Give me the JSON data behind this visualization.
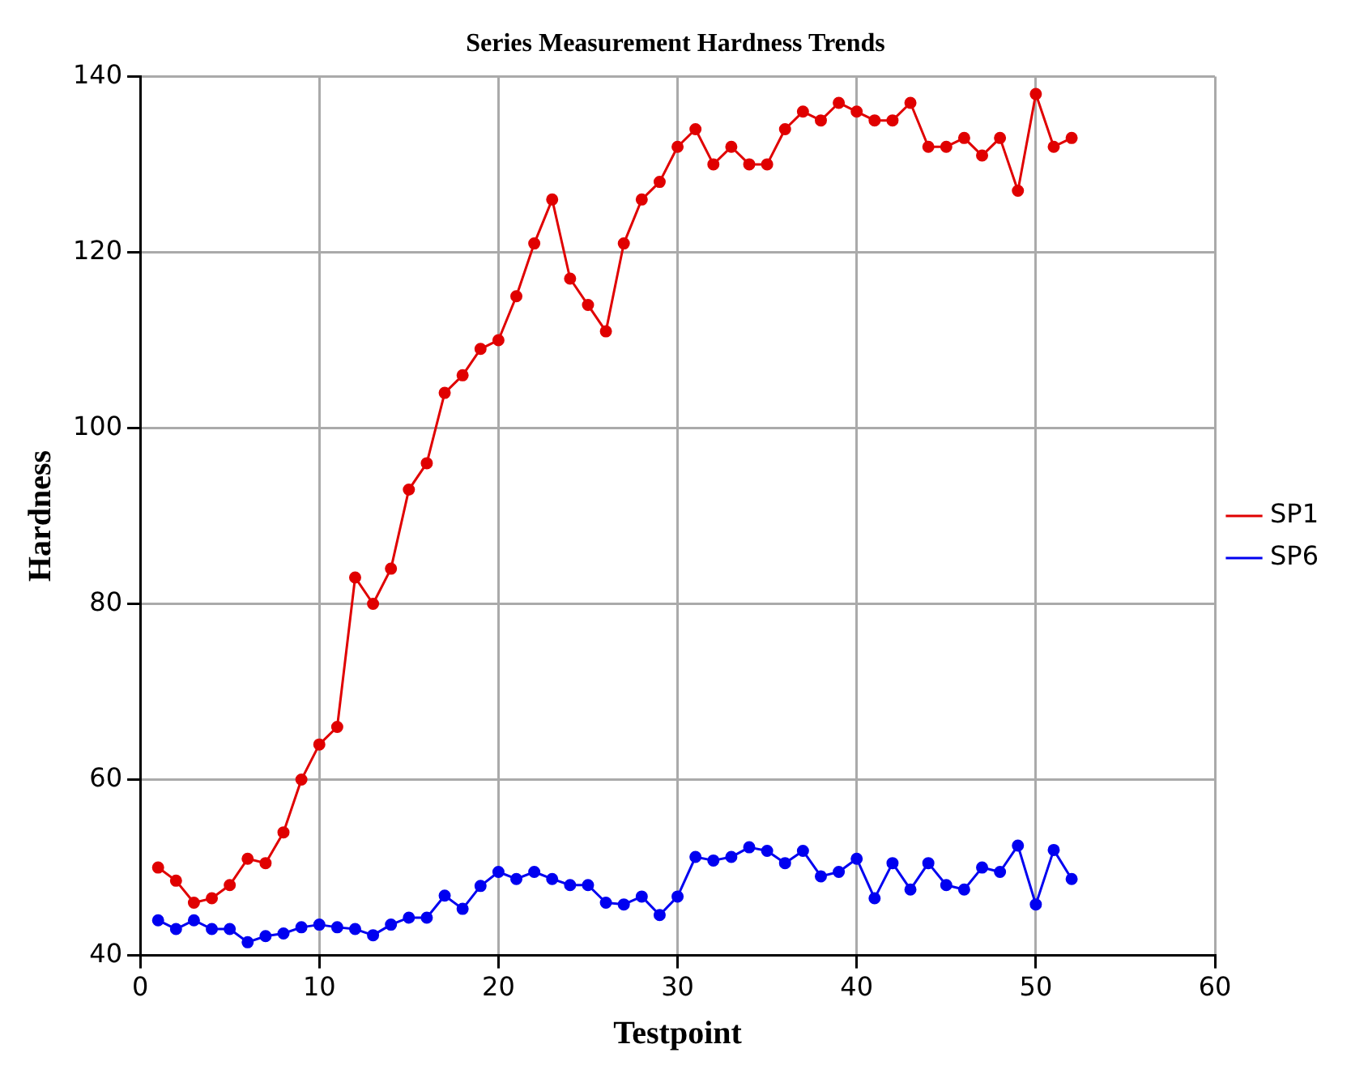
{
  "chart_data": {
    "type": "line",
    "title": "Series Measurement Hardness Trends",
    "xlabel": "Testpoint",
    "ylabel": "Hardness",
    "x": [
      1,
      2,
      3,
      4,
      5,
      6,
      7,
      8,
      9,
      10,
      11,
      12,
      13,
      14,
      15,
      16,
      17,
      18,
      19,
      20,
      21,
      22,
      23,
      24,
      25,
      26,
      27,
      28,
      29,
      30,
      31,
      32,
      33,
      34,
      35,
      36,
      37,
      38,
      39,
      40,
      41,
      42,
      43,
      44,
      45,
      46,
      47,
      48,
      49,
      50,
      51,
      52
    ],
    "series": [
      {
        "name": "SP1",
        "color": "#e00000",
        "values": [
          50,
          48.5,
          46,
          46.5,
          48,
          51,
          50.5,
          54,
          60,
          64,
          66,
          83,
          80,
          84,
          93,
          96,
          104,
          106,
          109,
          110,
          115,
          121,
          126,
          117,
          114,
          111,
          121,
          126,
          128,
          132,
          134,
          130,
          132,
          130,
          130,
          134,
          136,
          135,
          137,
          136,
          135,
          135,
          137,
          132,
          132,
          133,
          131,
          133,
          127,
          138,
          132,
          133
        ]
      },
      {
        "name": "SP6",
        "color": "#0000f0",
        "values": [
          44,
          43,
          44,
          43,
          43,
          41.5,
          42.2,
          42.5,
          43.2,
          43.5,
          43.2,
          43,
          42.3,
          43.5,
          44.3,
          44.3,
          46.8,
          45.3,
          47.9,
          49.5,
          48.7,
          49.5,
          48.7,
          48,
          48,
          46,
          45.8,
          46.7,
          44.6,
          46.7,
          51.2,
          50.8,
          51.2,
          52.3,
          51.9,
          50.5,
          51.9,
          49,
          49.5,
          51,
          46.5,
          50.5,
          47.5,
          50.5,
          48,
          47.5,
          50,
          49.5,
          52.5,
          45.8,
          52,
          48.7
        ]
      }
    ],
    "xlim": [
      0,
      60
    ],
    "xticks": [
      0,
      10,
      20,
      30,
      40,
      50,
      60
    ],
    "ylim": [
      40,
      140
    ],
    "yticks": [
      40,
      60,
      80,
      100,
      120,
      140
    ],
    "grid": true,
    "legend": "right",
    "marker": "circle",
    "line_style": "solid"
  }
}
